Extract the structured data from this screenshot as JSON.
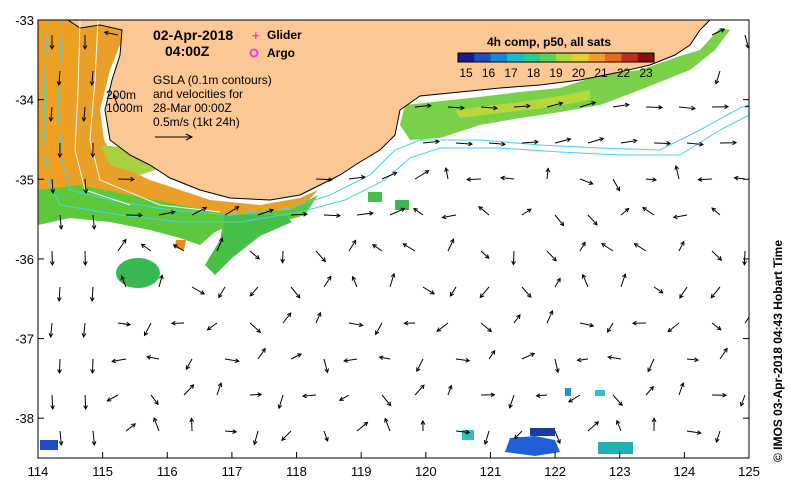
{
  "map": {
    "date_line": "02-Apr-2018",
    "time_line": "04:00Z",
    "x_ticks": [
      "114",
      "115",
      "116",
      "117",
      "118",
      "119",
      "120",
      "121",
      "122",
      "123",
      "124",
      "125"
    ],
    "y_ticks": [
      "-33",
      "-34",
      "-35",
      "-36",
      "-37",
      "-38"
    ],
    "x_range_deg_e": [
      114,
      125
    ],
    "y_range_deg": [
      -33,
      -38.5
    ],
    "depth_labels": [
      "200m",
      "1000m"
    ],
    "legend": {
      "glider_label": "Glider",
      "argo_label": "Argo",
      "glider_symbol": "+",
      "argo_symbol": "o"
    },
    "gsla_note": [
      "GSLA (0.1m contours)",
      "and velocities for",
      "28-Mar 00:00Z",
      "0.5m/s (1kt 24h)"
    ],
    "colorbar": {
      "title": "4h comp, p50, all sats",
      "ticks": [
        "15",
        "16",
        "17",
        "18",
        "19",
        "20",
        "21",
        "22",
        "23"
      ],
      "colors": [
        "#1a1a8c",
        "#1f4fc8",
        "#1f86d6",
        "#1fb8c8",
        "#2fc890",
        "#5bd05a",
        "#a8d83a",
        "#e0d030",
        "#f0a028",
        "#e86a20",
        "#c03020",
        "#8a1010"
      ]
    },
    "credit": "© IMOS 03-Apr-2018 04:43 Hobart Time",
    "colors": {
      "land": "#fbc794",
      "ocean": "#ffffff",
      "contour": "#44d4e8"
    }
  }
}
